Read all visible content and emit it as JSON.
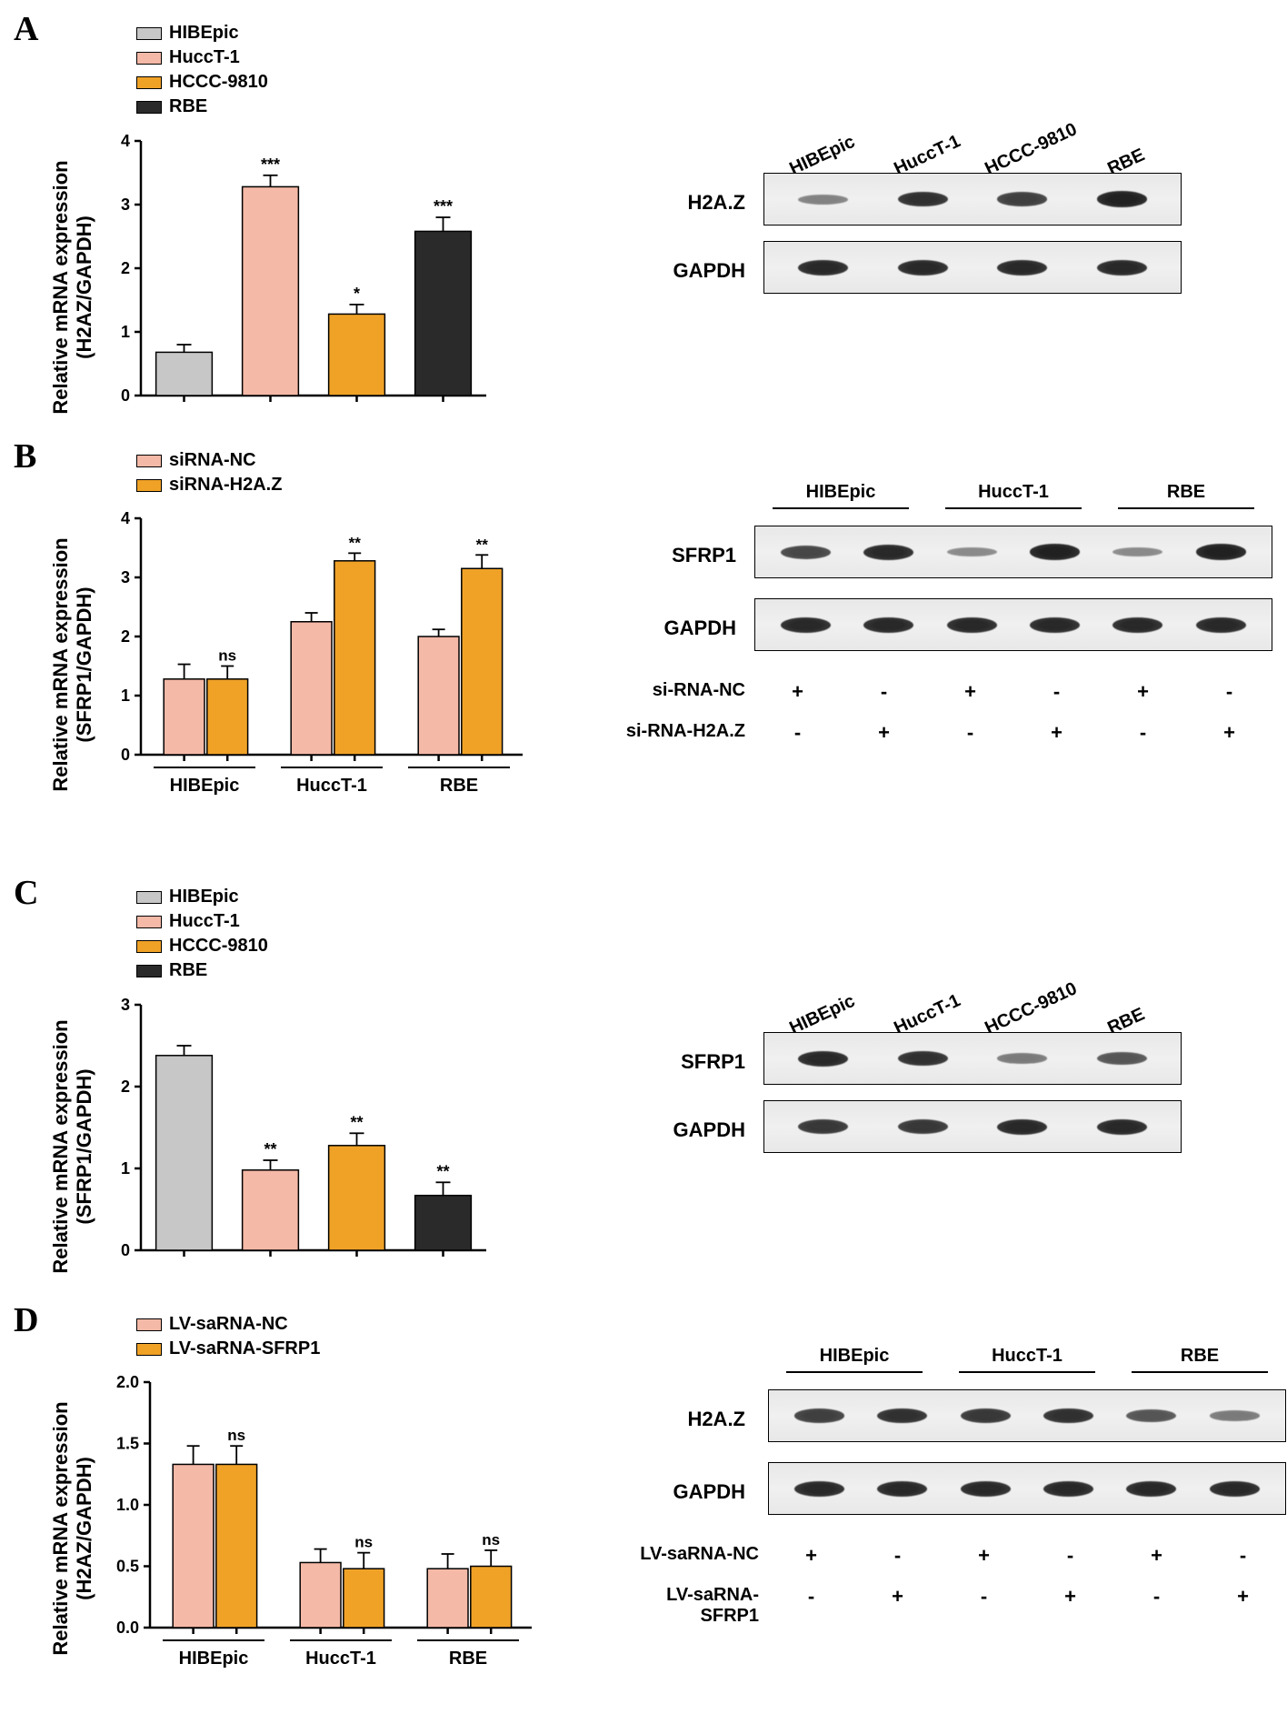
{
  "colors": {
    "gray": "#c7c7c7",
    "pink": "#f5b9a7",
    "orange": "#f0a227",
    "black": "#2a2a2a",
    "axis": "#000000",
    "bg": "#ffffff"
  },
  "font": {
    "axis_label_size": 22,
    "tick_size": 18,
    "legend_size": 20,
    "panel_label_size": 38,
    "blot_label_size": 22,
    "blot_header_size": 20,
    "cond_size": 20,
    "cond_sign_size": 22
  },
  "panelA": {
    "label": "A",
    "chart": {
      "ylabel_line1": "Relative mRNA expression",
      "ylabel_line2": "(H2AZ/GAPDH)",
      "ylim": [
        0,
        4
      ],
      "yticks": [
        0,
        1,
        2,
        3,
        4
      ],
      "bars": [
        {
          "label": "HIBEpic",
          "value": 0.68,
          "err": 0.12,
          "color": "#c7c7c7",
          "sig": ""
        },
        {
          "label": "HuccT-1",
          "value": 3.28,
          "err": 0.18,
          "color": "#f5b9a7",
          "sig": "***"
        },
        {
          "label": "HCCC-9810",
          "value": 1.28,
          "err": 0.15,
          "color": "#f0a227",
          "sig": "*"
        },
        {
          "label": "RBE",
          "value": 2.58,
          "err": 0.22,
          "color": "#2a2a2a",
          "sig": "***"
        }
      ],
      "legend": [
        {
          "label": "HIBEpic",
          "color": "#c7c7c7"
        },
        {
          "label": "HuccT-1",
          "color": "#f5b9a7"
        },
        {
          "label": "HCCC-9810",
          "color": "#f0a227"
        },
        {
          "label": "RBE",
          "color": "#2a2a2a"
        }
      ]
    },
    "blot": {
      "headers": [
        "HIBEpic",
        "HuccT-1",
        "HCCC-9810",
        "RBE"
      ],
      "rows": [
        {
          "label": "H2A.Z",
          "bands": [
            0.3,
            0.85,
            0.75,
            0.95
          ]
        },
        {
          "label": "GAPDH",
          "bands": [
            0.9,
            0.9,
            0.9,
            0.9
          ]
        }
      ]
    }
  },
  "panelB": {
    "label": "B",
    "chart": {
      "ylabel_line1": "Relative mRNA expression",
      "ylabel_line2": "(SFRP1/GAPDH)",
      "ylim": [
        0,
        4
      ],
      "yticks": [
        0,
        1,
        2,
        3,
        4
      ],
      "groups": [
        "HIBEpic",
        "HuccT-1",
        "RBE"
      ],
      "bars": [
        {
          "group": 0,
          "value": 1.28,
          "err": 0.25,
          "color": "#f5b9a7",
          "sig": ""
        },
        {
          "group": 0,
          "value": 1.28,
          "err": 0.22,
          "color": "#f0a227",
          "sig": "ns"
        },
        {
          "group": 1,
          "value": 2.25,
          "err": 0.15,
          "color": "#f5b9a7",
          "sig": ""
        },
        {
          "group": 1,
          "value": 3.28,
          "err": 0.13,
          "color": "#f0a227",
          "sig": "**"
        },
        {
          "group": 2,
          "value": 2.0,
          "err": 0.12,
          "color": "#f5b9a7",
          "sig": ""
        },
        {
          "group": 2,
          "value": 3.15,
          "err": 0.23,
          "color": "#f0a227",
          "sig": "**"
        }
      ],
      "legend": [
        {
          "label": "siRNA-NC",
          "color": "#f5b9a7"
        },
        {
          "label": "siRNA-H2A.Z",
          "color": "#f0a227"
        }
      ]
    },
    "blot": {
      "headers": [
        "HIBEpic",
        "HuccT-1",
        "RBE"
      ],
      "rows": [
        {
          "label": "SFRP1",
          "bands": [
            0.7,
            0.9,
            0.25,
            0.95,
            0.25,
            0.95
          ]
        },
        {
          "label": "GAPDH",
          "bands": [
            0.9,
            0.9,
            0.9,
            0.9,
            0.9,
            0.9
          ]
        }
      ],
      "conditions": [
        {
          "label": "si-RNA-NC",
          "signs": [
            "+",
            "-",
            "+",
            "-",
            "+",
            "-"
          ]
        },
        {
          "label": "si-RNA-H2A.Z",
          "signs": [
            "-",
            "+",
            "-",
            "+",
            "-",
            "+"
          ]
        }
      ]
    }
  },
  "panelC": {
    "label": "C",
    "chart": {
      "ylabel_line1": "Relative mRNA expression",
      "ylabel_line2": "(SFRP1/GAPDH)",
      "ylim": [
        0,
        3
      ],
      "yticks": [
        0,
        1,
        2,
        3
      ],
      "bars": [
        {
          "label": "HIBEpic",
          "value": 2.38,
          "err": 0.12,
          "color": "#c7c7c7",
          "sig": ""
        },
        {
          "label": "HuccT-1",
          "value": 0.98,
          "err": 0.12,
          "color": "#f5b9a7",
          "sig": "**"
        },
        {
          "label": "HCCC-9810",
          "value": 1.28,
          "err": 0.15,
          "color": "#f0a227",
          "sig": "**"
        },
        {
          "label": "RBE",
          "value": 0.67,
          "err": 0.16,
          "color": "#2a2a2a",
          "sig": "**"
        }
      ],
      "legend": [
        {
          "label": "HIBEpic",
          "color": "#c7c7c7"
        },
        {
          "label": "HuccT-1",
          "color": "#f5b9a7"
        },
        {
          "label": "HCCC-9810",
          "color": "#f0a227"
        },
        {
          "label": "RBE",
          "color": "#2a2a2a"
        }
      ]
    },
    "blot": {
      "headers": [
        "HIBEpic",
        "HuccT-1",
        "HCCC-9810",
        "RBE"
      ],
      "rows": [
        {
          "label": "SFRP1",
          "bands": [
            0.9,
            0.85,
            0.35,
            0.6
          ]
        },
        {
          "label": "GAPDH",
          "bands": [
            0.8,
            0.8,
            0.9,
            0.9
          ]
        }
      ]
    }
  },
  "panelD": {
    "label": "D",
    "chart": {
      "ylabel_line1": "Relative mRNA expression",
      "ylabel_line2": "(H2AZ/GAPDH)",
      "ylim": [
        0,
        2.0
      ],
      "yticks": [
        0.0,
        0.5,
        1.0,
        1.5,
        2.0
      ],
      "groups": [
        "HIBEpic",
        "HuccT-1",
        "RBE"
      ],
      "bars": [
        {
          "group": 0,
          "value": 1.33,
          "err": 0.15,
          "color": "#f5b9a7",
          "sig": ""
        },
        {
          "group": 0,
          "value": 1.33,
          "err": 0.15,
          "color": "#f0a227",
          "sig": "ns"
        },
        {
          "group": 1,
          "value": 0.53,
          "err": 0.11,
          "color": "#f5b9a7",
          "sig": ""
        },
        {
          "group": 1,
          "value": 0.48,
          "err": 0.13,
          "color": "#f0a227",
          "sig": "ns"
        },
        {
          "group": 2,
          "value": 0.48,
          "err": 0.12,
          "color": "#f5b9a7",
          "sig": ""
        },
        {
          "group": 2,
          "value": 0.5,
          "err": 0.13,
          "color": "#f0a227",
          "sig": "ns"
        }
      ],
      "legend": [
        {
          "label": "LV-saRNA-NC",
          "color": "#f5b9a7"
        },
        {
          "label": "LV-saRNA-SFRP1",
          "color": "#f0a227"
        }
      ]
    },
    "blot": {
      "headers": [
        "HIBEpic",
        "HuccT-1",
        "RBE"
      ],
      "rows": [
        {
          "label": "H2A.Z",
          "bands": [
            0.75,
            0.85,
            0.8,
            0.85,
            0.6,
            0.35
          ]
        },
        {
          "label": "GAPDH",
          "bands": [
            0.9,
            0.9,
            0.9,
            0.9,
            0.9,
            0.9
          ]
        }
      ],
      "conditions": [
        {
          "label": "LV-saRNA-NC",
          "signs": [
            "+",
            "-",
            "+",
            "-",
            "+",
            "-"
          ]
        },
        {
          "label": "LV-saRNA-SFRP1",
          "signs": [
            "-",
            "+",
            "-",
            "+",
            "-",
            "+"
          ]
        }
      ]
    }
  }
}
